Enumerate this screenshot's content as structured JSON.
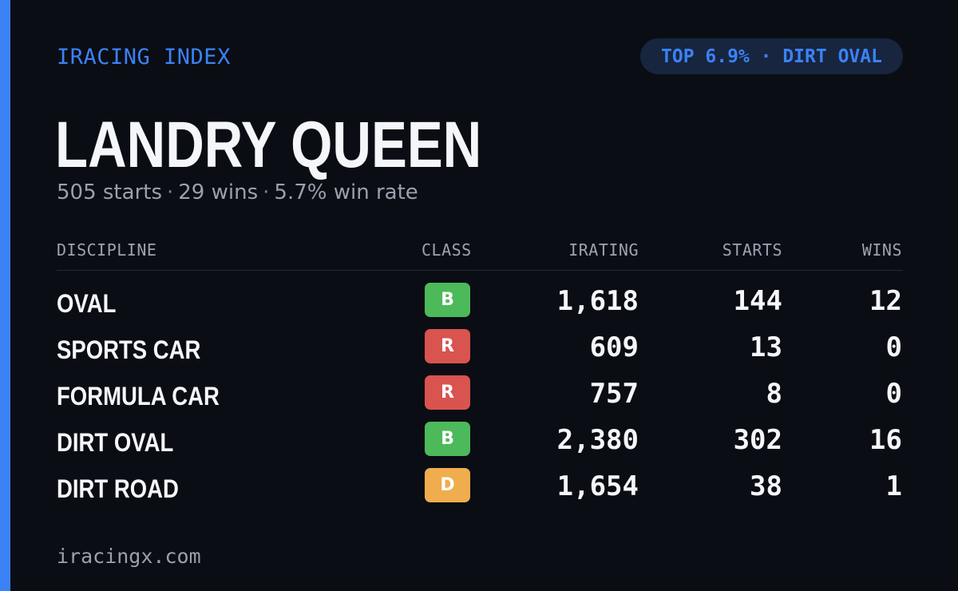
{
  "brand": "IRACING INDEX",
  "badge": "TOP 6.9% · DIRT OVAL",
  "driver_name": "LANDRY QUEEN",
  "summary": {
    "starts": "505 starts",
    "wins": "29 wins",
    "win_rate": "5.7% win rate",
    "separator": "·"
  },
  "table": {
    "headers": {
      "discipline": "DISCIPLINE",
      "class": "CLASS",
      "irating": "IRATING",
      "starts": "STARTS",
      "wins": "WINS"
    },
    "rows": [
      {
        "discipline": "OVAL",
        "class": "B",
        "class_color": "#4cb95a",
        "irating": "1,618",
        "starts": "144",
        "wins": "12"
      },
      {
        "discipline": "SPORTS CAR",
        "class": "R",
        "class_color": "#d9534f",
        "irating": "609",
        "starts": "13",
        "wins": "0"
      },
      {
        "discipline": "FORMULA CAR",
        "class": "R",
        "class_color": "#d9534f",
        "irating": "757",
        "starts": "8",
        "wins": "0"
      },
      {
        "discipline": "DIRT OVAL",
        "class": "B",
        "class_color": "#4cb95a",
        "irating": "2,380",
        "starts": "302",
        "wins": "16"
      },
      {
        "discipline": "DIRT ROAD",
        "class": "D",
        "class_color": "#f0ad4e",
        "irating": "1,654",
        "starts": "38",
        "wins": "1"
      }
    ]
  },
  "footer": "iracingx.com",
  "colors": {
    "background": "#0b0d14",
    "accent": "#3b82f6",
    "badge_background": "#17253f",
    "muted_text": "#9aa0ad"
  }
}
